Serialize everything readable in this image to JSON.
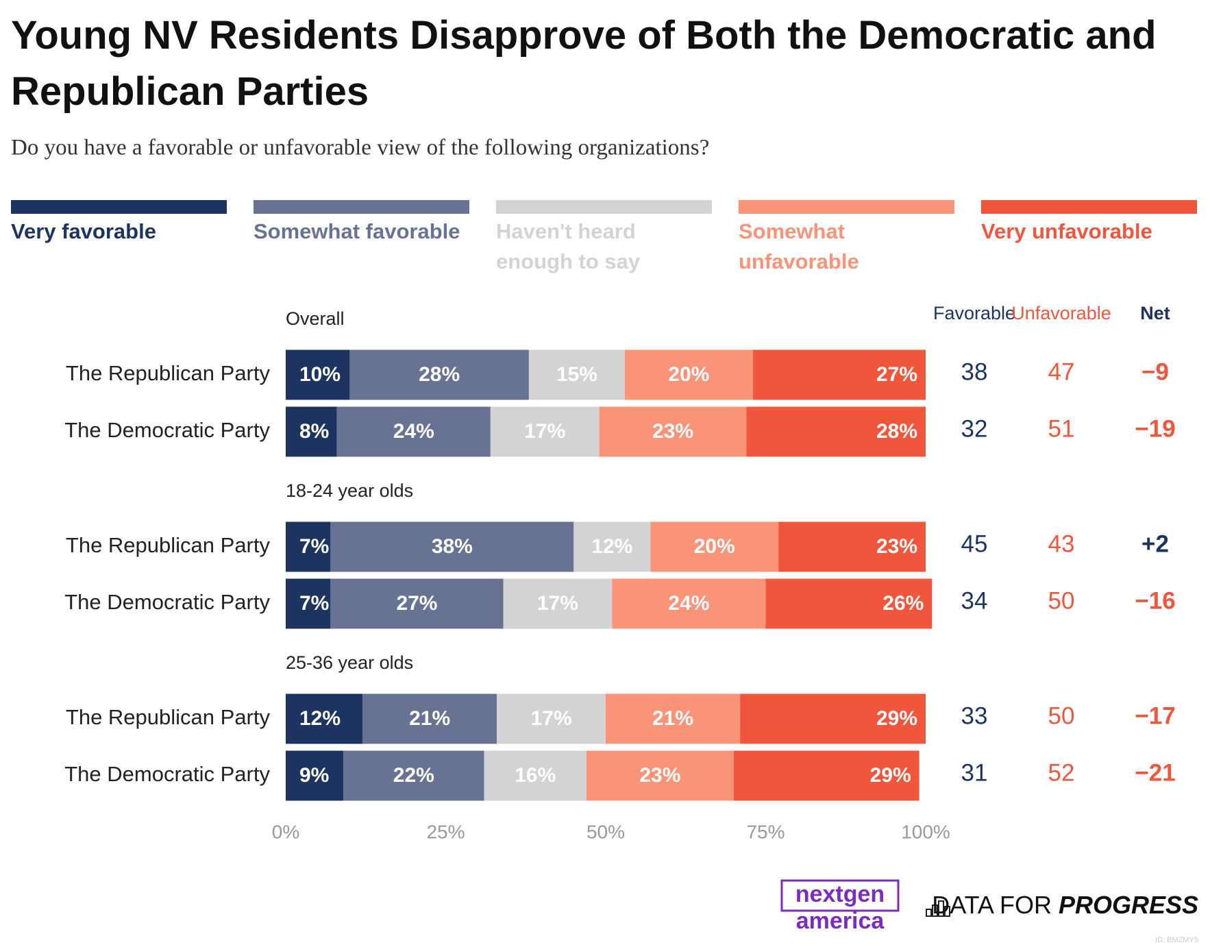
{
  "chart_data": {
    "type": "bar",
    "orientation": "horizontal",
    "stacked": true,
    "title": "Young NV Residents Disapprove of Both the Democratic and Republican Parties",
    "subtitle": "Do you have a favorable or unfavorable view of the following organizations?",
    "categories": [
      "The Republican Party",
      "The Democratic Party",
      "The Republican Party",
      "The Democratic Party",
      "The Republican Party",
      "The Democratic Party"
    ],
    "category_groups": [
      "Overall",
      "Overall",
      "18-24 year olds",
      "18-24 year olds",
      "25-36 year olds",
      "25-36 year olds"
    ],
    "series": [
      {
        "name": "Very favorable",
        "color": "#1d3461",
        "values": [
          10,
          8,
          7,
          7,
          12,
          9
        ],
        "value_labels": [
          "10%",
          "8%",
          "7%",
          "7%",
          "12%",
          "9%"
        ]
      },
      {
        "name": "Somewhat favorable",
        "color": "#687394",
        "values": [
          28,
          24,
          38,
          27,
          21,
          22
        ],
        "value_labels": [
          "28%",
          "24%",
          "38%",
          "27%",
          "21%",
          "22%"
        ]
      },
      {
        "name": "Haven't heard enough to say",
        "color": "#d3d3d5",
        "values": [
          15,
          17,
          12,
          17,
          17,
          16
        ],
        "value_labels": [
          "15%",
          "17%",
          "12%",
          "17%",
          "17%",
          "16%"
        ]
      },
      {
        "name": "Somewhat unfavorable",
        "color": "#f99478",
        "values": [
          20,
          23,
          20,
          24,
          21,
          23
        ],
        "value_labels": [
          "20%",
          "23%",
          "20%",
          "24%",
          "21%",
          "23%"
        ]
      },
      {
        "name": "Very unfavorable",
        "color": "#ef563c",
        "values": [
          27,
          28,
          23,
          26,
          29,
          29
        ],
        "value_labels": [
          "27%",
          "28%",
          "23%",
          "26%",
          "29%",
          "29%"
        ]
      }
    ],
    "xlim": [
      0,
      100
    ],
    "xticks": [
      {
        "value": 0,
        "label": "0%"
      },
      {
        "value": 25,
        "label": "25%"
      },
      {
        "value": 50,
        "label": "50%"
      },
      {
        "value": 75,
        "label": "75%"
      },
      {
        "value": 100,
        "label": "100%"
      }
    ],
    "grid": false,
    "summary_columns": [
      {
        "name": "Favorable",
        "color": "#1d3461",
        "values": [
          38,
          32,
          45,
          34,
          33,
          31
        ]
      },
      {
        "name": "Unfavorable",
        "color": "#ef563c",
        "values": [
          47,
          51,
          43,
          50,
          50,
          52
        ]
      },
      {
        "name": "Net",
        "color": "#1d3461",
        "positive_color": "#1d3461",
        "negative_color": "#ef563c",
        "values": [
          -9,
          -19,
          2,
          -16,
          -17,
          -21
        ],
        "value_labels": [
          "−9",
          "−19",
          "+2",
          "−16",
          "−17",
          "−21"
        ]
      }
    ]
  },
  "footer": {
    "nextgen": [
      "nextgen",
      "america"
    ],
    "dfp": [
      "DATA FOR",
      "PROGRESS"
    ],
    "id": "ID: BMZMY5"
  }
}
